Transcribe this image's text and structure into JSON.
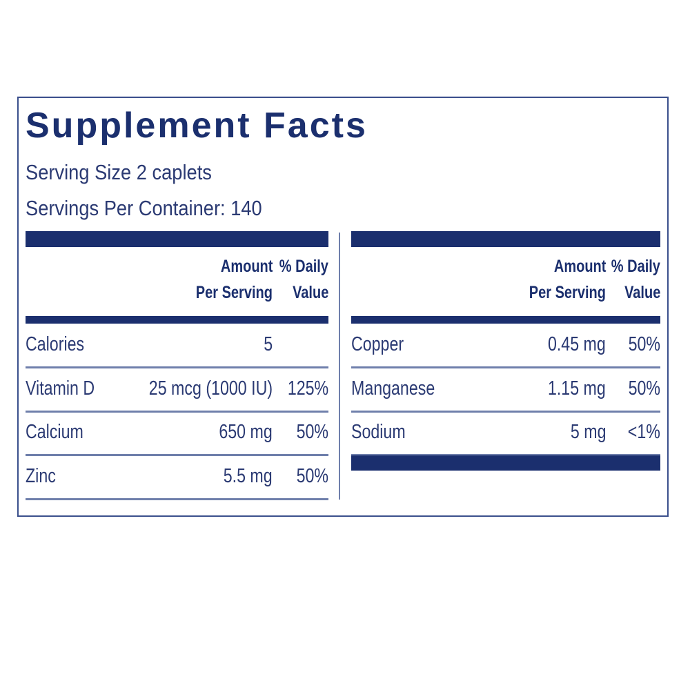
{
  "title": "Supplement Facts",
  "serving_size": "Serving Size 2 caplets",
  "servings_per_container": "Servings Per Container: 140",
  "tables": [
    {
      "header": {
        "amount": [
          "Amount",
          "Per Serving"
        ],
        "daily_value": [
          "% Daily",
          "Value"
        ]
      },
      "rows": [
        {
          "name": "Calories",
          "amount": "5"
        },
        {
          "name": "Vitamin D",
          "amount": "25 mcg (1000 IU)",
          "daily_value": "125%"
        },
        {
          "name": "Calcium",
          "amount": "650 mg",
          "daily_value": "50%"
        },
        {
          "name": "Zinc",
          "amount": "5.5 mg",
          "daily_value": "50%"
        }
      ]
    },
    {
      "header": {
        "amount": [
          "Amount",
          "Per Serving"
        ],
        "daily_value": [
          "% Daily",
          "Value"
        ]
      },
      "rows": [
        {
          "name": "Copper",
          "amount": "0.45 mg",
          "daily_value": "50%"
        },
        {
          "name": "Manganese",
          "amount": "1.15 mg",
          "daily_value": "50%"
        },
        {
          "name": "Sodium",
          "amount": "5 mg",
          "daily_value": "<1%"
        }
      ]
    }
  ]
}
